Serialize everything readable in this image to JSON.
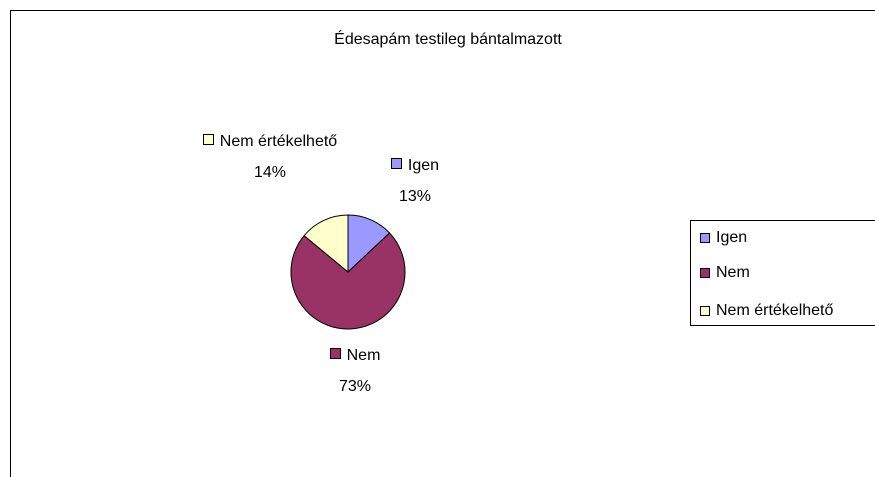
{
  "chart_data": {
    "type": "pie",
    "title": "Édesapám testileg bántalmazott",
    "categories": [
      "Igen",
      "Nem",
      "Nem értékelhető"
    ],
    "values": [
      13,
      73,
      14
    ],
    "value_labels": [
      "13%",
      "73%",
      "14%"
    ],
    "colors": [
      "#9999ff",
      "#993366",
      "#ffffcc"
    ],
    "legend": "right"
  }
}
